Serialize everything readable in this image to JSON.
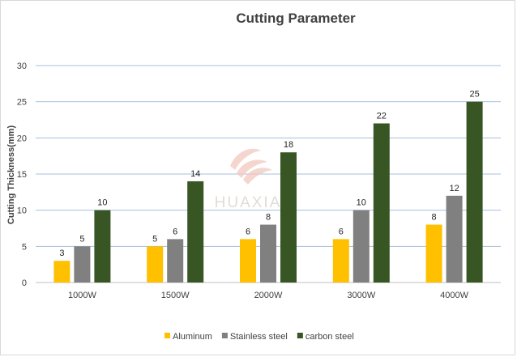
{
  "chart_data": {
    "type": "bar",
    "title": "Cutting Parameter",
    "xlabel": "",
    "ylabel": "Cutting Thickness(mm)",
    "categories": [
      "1000W",
      "1500W",
      "2000W",
      "3000W",
      "4000W"
    ],
    "ylim": [
      0,
      30
    ],
    "yticks": [
      0,
      5,
      10,
      15,
      20,
      25,
      30
    ],
    "grid": true,
    "legend_position": "bottom",
    "series": [
      {
        "name": "Aluminum",
        "color": "#ffc000",
        "values": [
          3,
          5,
          6,
          6,
          8
        ]
      },
      {
        "name": "Stainless steel",
        "color": "#808080",
        "values": [
          5,
          6,
          8,
          10,
          12
        ]
      },
      {
        "name": "carbon steel",
        "color": "#375623",
        "values": [
          10,
          14,
          18,
          22,
          25
        ]
      }
    ]
  },
  "watermark": {
    "text": "HUAXIA",
    "icon": "huaxia-logo-icon"
  }
}
